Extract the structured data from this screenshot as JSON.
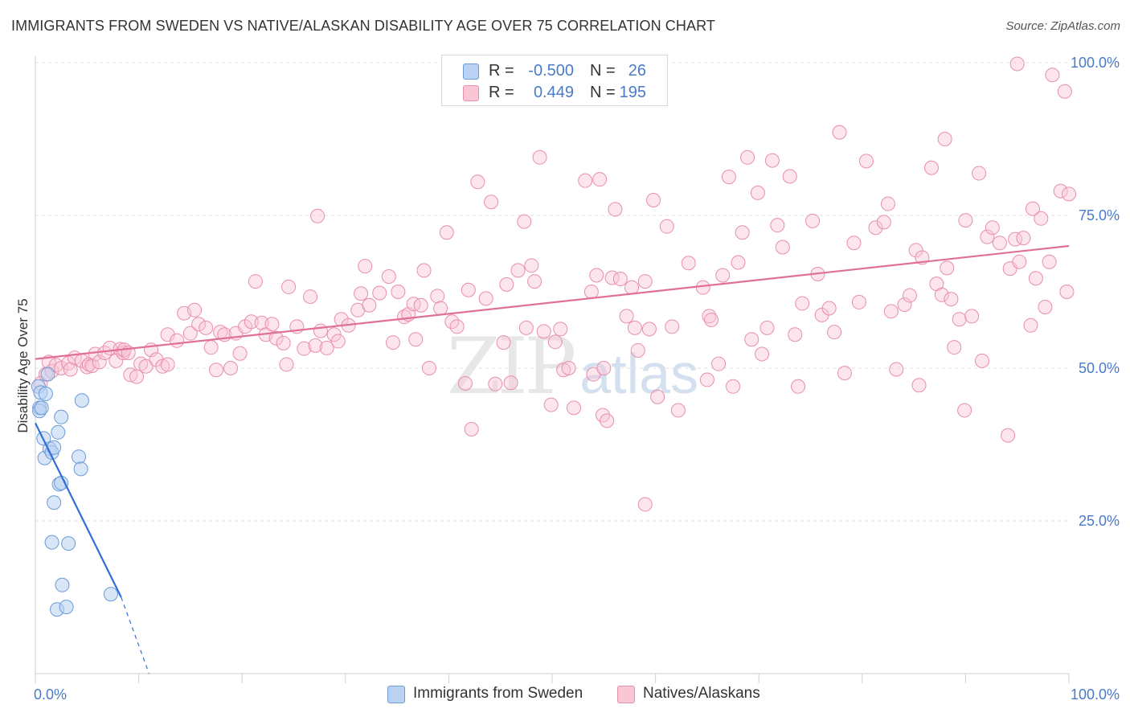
{
  "title": "IMMIGRANTS FROM SWEDEN VS NATIVE/ALASKAN DISABILITY AGE OVER 75 CORRELATION CHART",
  "source": "Source: ZipAtlas.com",
  "watermark": {
    "zip": "ZIP",
    "atlas": "atlas"
  },
  "legend": {
    "rows": [
      {
        "r_label": "R =",
        "r_value": "-0.500",
        "n_label": "N =",
        "n_value": "26"
      },
      {
        "r_label": "R =",
        "r_value": "0.449",
        "n_label": "N =",
        "n_value": "195"
      }
    ]
  },
  "bottom_legend": {
    "series1": "Immigrants from Sweden",
    "series2": "Natives/Alaskans"
  },
  "colors": {
    "blue_fill": "#b9d1f3",
    "blue_stroke": "#6a9ad8",
    "blue_line": "#2f6fd6",
    "pink_fill": "#f8c6d4",
    "pink_stroke": "#e88fab",
    "pink_line": "#e0709a",
    "grid": "#e2e2e2",
    "axis_text": "#4a7bc8"
  },
  "chart_data": {
    "type": "scatter",
    "title": "IMMIGRANTS FROM SWEDEN VS NATIVE/ALASKAN DISABILITY AGE OVER 75 CORRELATION CHART",
    "xlabel": "",
    "ylabel": "Disability Age Over 75",
    "xlim": [
      0,
      100
    ],
    "ylim": [
      0,
      101
    ],
    "x_tick_labels": [
      {
        "value": 0,
        "label": "0.0%"
      },
      {
        "value": 100,
        "label": "100.0%"
      }
    ],
    "y_tick_labels": [
      {
        "value": 25,
        "label": "25.0%"
      },
      {
        "value": 50,
        "label": "50.0%"
      },
      {
        "value": 75,
        "label": "75.0%"
      },
      {
        "value": 100,
        "label": "100.0%"
      }
    ],
    "grid": true,
    "legend_position": "top-center",
    "series": [
      {
        "name": "Immigrants from Sweden",
        "color": "#b9d1f3",
        "R": -0.5,
        "N": 26,
        "trend": {
          "x": [
            0,
            8.3
          ],
          "y": [
            41.0,
            12.5
          ],
          "dashed_to": [
            11.0,
            0.0
          ]
        },
        "points": [
          [
            0.3,
            47.0
          ],
          [
            0.4,
            43.5
          ],
          [
            0.5,
            46.0
          ],
          [
            0.4,
            43.0
          ],
          [
            0.6,
            43.5
          ],
          [
            1.0,
            45.8
          ],
          [
            1.2,
            49.0
          ],
          [
            0.8,
            38.5
          ],
          [
            0.9,
            35.3
          ],
          [
            1.4,
            36.8
          ],
          [
            1.6,
            36.2
          ],
          [
            1.8,
            37.0
          ],
          [
            2.2,
            39.5
          ],
          [
            2.5,
            42.0
          ],
          [
            2.3,
            31.0
          ],
          [
            2.5,
            31.2
          ],
          [
            1.8,
            28.0
          ],
          [
            4.5,
            44.7
          ],
          [
            4.2,
            35.5
          ],
          [
            4.4,
            33.5
          ],
          [
            1.6,
            21.5
          ],
          [
            3.2,
            21.3
          ],
          [
            2.6,
            14.5
          ],
          [
            2.1,
            10.5
          ],
          [
            3.0,
            10.9
          ],
          [
            7.3,
            13.0
          ]
        ]
      },
      {
        "name": "Natives/Alaskans",
        "color": "#f8c6d4",
        "R": 0.449,
        "N": 195,
        "trend": {
          "x": [
            0,
            100
          ],
          "y": [
            51.5,
            70.0
          ]
        },
        "points": [
          [
            0.5,
            47.5
          ],
          [
            1.0,
            49.0
          ],
          [
            1.3,
            51.0
          ],
          [
            1.6,
            49.5
          ],
          [
            2.0,
            50.5
          ],
          [
            2.5,
            50.0
          ],
          [
            3.2,
            50.8
          ],
          [
            3.4,
            49.8
          ],
          [
            3.8,
            51.7
          ],
          [
            4.5,
            51.2
          ],
          [
            5.0,
            50.2
          ],
          [
            5.2,
            50.6
          ],
          [
            5.5,
            50.4
          ],
          [
            5.8,
            52.3
          ],
          [
            6.2,
            51.0
          ],
          [
            6.7,
            52.5
          ],
          [
            7.2,
            53.3
          ],
          [
            7.8,
            51.2
          ],
          [
            8.2,
            53.1
          ],
          [
            8.5,
            52.5
          ],
          [
            8.6,
            53.0
          ],
          [
            9.0,
            52.5
          ],
          [
            9.2,
            48.9
          ],
          [
            9.8,
            48.6
          ],
          [
            10.2,
            50.7
          ],
          [
            10.7,
            50.3
          ],
          [
            11.2,
            53.0
          ],
          [
            11.7,
            51.4
          ],
          [
            12.3,
            50.3
          ],
          [
            12.8,
            50.6
          ],
          [
            12.8,
            55.5
          ],
          [
            13.7,
            54.5
          ],
          [
            14.4,
            59.0
          ],
          [
            15.0,
            55.7
          ],
          [
            15.4,
            59.5
          ],
          [
            15.8,
            57.2
          ],
          [
            16.5,
            56.6
          ],
          [
            17.0,
            53.4
          ],
          [
            17.5,
            49.7
          ],
          [
            17.9,
            55.9
          ],
          [
            18.3,
            55.5
          ],
          [
            18.9,
            50.0
          ],
          [
            19.4,
            55.7
          ],
          [
            19.8,
            52.4
          ],
          [
            20.3,
            56.8
          ],
          [
            20.9,
            57.6
          ],
          [
            21.3,
            64.2
          ],
          [
            21.9,
            57.4
          ],
          [
            22.3,
            55.5
          ],
          [
            22.9,
            57.2
          ],
          [
            23.3,
            54.9
          ],
          [
            24.0,
            54.1
          ],
          [
            24.3,
            50.6
          ],
          [
            24.5,
            63.3
          ],
          [
            25.3,
            56.8
          ],
          [
            26.0,
            53.2
          ],
          [
            26.6,
            61.7
          ],
          [
            27.1,
            53.7
          ],
          [
            27.3,
            74.9
          ],
          [
            27.6,
            56.1
          ],
          [
            28.2,
            53.3
          ],
          [
            28.9,
            55.5
          ],
          [
            29.3,
            54.4
          ],
          [
            29.6,
            58.0
          ],
          [
            30.3,
            57.0
          ],
          [
            31.2,
            59.5
          ],
          [
            31.5,
            62.2
          ],
          [
            31.9,
            66.7
          ],
          [
            32.3,
            60.3
          ],
          [
            33.3,
            62.3
          ],
          [
            34.2,
            65.0
          ],
          [
            34.6,
            54.2
          ],
          [
            35.1,
            62.5
          ],
          [
            35.7,
            58.4
          ],
          [
            36.1,
            58.8
          ],
          [
            36.6,
            60.5
          ],
          [
            37.3,
            60.3
          ],
          [
            37.6,
            66.0
          ],
          [
            38.1,
            50.0
          ],
          [
            38.9,
            61.8
          ],
          [
            39.2,
            59.8
          ],
          [
            39.8,
            72.2
          ],
          [
            40.3,
            57.6
          ],
          [
            40.8,
            56.8
          ],
          [
            41.6,
            47.5
          ],
          [
            41.9,
            62.8
          ],
          [
            42.2,
            40.0
          ],
          [
            42.8,
            80.5
          ],
          [
            43.6,
            61.4
          ],
          [
            44.1,
            77.2
          ],
          [
            44.5,
            47.4
          ],
          [
            45.3,
            54.2
          ],
          [
            45.6,
            63.7
          ],
          [
            46.0,
            47.6
          ],
          [
            46.7,
            66.0
          ],
          [
            47.3,
            74.0
          ],
          [
            47.5,
            56.6
          ],
          [
            48.0,
            66.8
          ],
          [
            48.3,
            64.2
          ],
          [
            48.8,
            84.5
          ],
          [
            49.2,
            56.0
          ],
          [
            49.9,
            44.0
          ],
          [
            50.3,
            54.3
          ],
          [
            50.8,
            56.4
          ],
          [
            51.1,
            49.7
          ],
          [
            51.6,
            50.0
          ],
          [
            52.1,
            43.5
          ],
          [
            53.2,
            80.7
          ],
          [
            53.8,
            62.5
          ],
          [
            54.0,
            49.0
          ],
          [
            54.3,
            65.2
          ],
          [
            54.6,
            80.9
          ],
          [
            54.9,
            42.3
          ],
          [
            55.3,
            41.4
          ],
          [
            55.8,
            64.8
          ],
          [
            56.1,
            76.0
          ],
          [
            56.6,
            64.6
          ],
          [
            57.2,
            58.5
          ],
          [
            57.7,
            63.2
          ],
          [
            58.0,
            56.6
          ],
          [
            58.3,
            52.9
          ],
          [
            59.0,
            64.2
          ],
          [
            59.4,
            56.4
          ],
          [
            59.8,
            77.5
          ],
          [
            60.2,
            45.3
          ],
          [
            61.1,
            73.2
          ],
          [
            61.6,
            56.8
          ],
          [
            62.2,
            43.1
          ],
          [
            63.2,
            67.2
          ],
          [
            64.6,
            63.2
          ],
          [
            65.0,
            48.1
          ],
          [
            65.2,
            58.5
          ],
          [
            65.4,
            57.9
          ],
          [
            66.1,
            50.7
          ],
          [
            66.5,
            65.2
          ],
          [
            67.1,
            81.3
          ],
          [
            67.5,
            47.0
          ],
          [
            68.0,
            67.3
          ],
          [
            68.4,
            72.2
          ],
          [
            68.9,
            84.5
          ],
          [
            69.3,
            54.7
          ],
          [
            69.9,
            78.7
          ],
          [
            70.3,
            52.3
          ],
          [
            70.8,
            56.6
          ],
          [
            71.3,
            84.0
          ],
          [
            71.8,
            73.4
          ],
          [
            72.3,
            69.8
          ],
          [
            73.5,
            55.5
          ],
          [
            73.8,
            47.0
          ],
          [
            74.2,
            60.6
          ],
          [
            75.2,
            74.1
          ],
          [
            75.7,
            65.4
          ],
          [
            76.1,
            58.7
          ],
          [
            76.8,
            59.8
          ],
          [
            77.3,
            55.9
          ],
          [
            77.8,
            88.6
          ],
          [
            78.3,
            49.2
          ],
          [
            79.2,
            70.5
          ],
          [
            79.7,
            60.8
          ],
          [
            80.4,
            83.9
          ],
          [
            81.3,
            73.0
          ],
          [
            82.1,
            73.9
          ],
          [
            82.8,
            59.3
          ],
          [
            83.3,
            49.8
          ],
          [
            84.1,
            60.4
          ],
          [
            84.6,
            61.9
          ],
          [
            85.2,
            69.3
          ],
          [
            85.8,
            68.1
          ],
          [
            86.7,
            82.8
          ],
          [
            87.2,
            63.8
          ],
          [
            87.7,
            62.0
          ],
          [
            88.2,
            66.4
          ],
          [
            88.6,
            61.3
          ],
          [
            88.9,
            53.4
          ],
          [
            89.4,
            58.0
          ],
          [
            89.9,
            43.1
          ],
          [
            90.6,
            58.5
          ],
          [
            91.3,
            81.9
          ],
          [
            91.6,
            51.2
          ],
          [
            92.1,
            71.5
          ],
          [
            92.6,
            73.0
          ],
          [
            93.3,
            70.5
          ],
          [
            94.1,
            39.0
          ],
          [
            94.3,
            66.3
          ],
          [
            94.8,
            71.1
          ],
          [
            95.2,
            67.4
          ],
          [
            95.6,
            71.3
          ],
          [
            96.3,
            57.0
          ],
          [
            96.8,
            64.7
          ],
          [
            97.3,
            74.5
          ],
          [
            97.7,
            60.0
          ],
          [
            98.1,
            67.4
          ],
          [
            99.2,
            79.0
          ],
          [
            99.6,
            95.3
          ],
          [
            99.8,
            62.5
          ],
          [
            100.0,
            78.5
          ],
          [
            98.4,
            98.0
          ],
          [
            95.0,
            99.8
          ],
          [
            96.5,
            76.1
          ],
          [
            88.0,
            87.5
          ],
          [
            82.5,
            76.9
          ],
          [
            90.0,
            74.2
          ],
          [
            85.5,
            47.2
          ],
          [
            73.0,
            81.4
          ],
          [
            59.0,
            27.7
          ],
          [
            55.0,
            50.0
          ],
          [
            36.8,
            54.7
          ]
        ]
      }
    ]
  }
}
